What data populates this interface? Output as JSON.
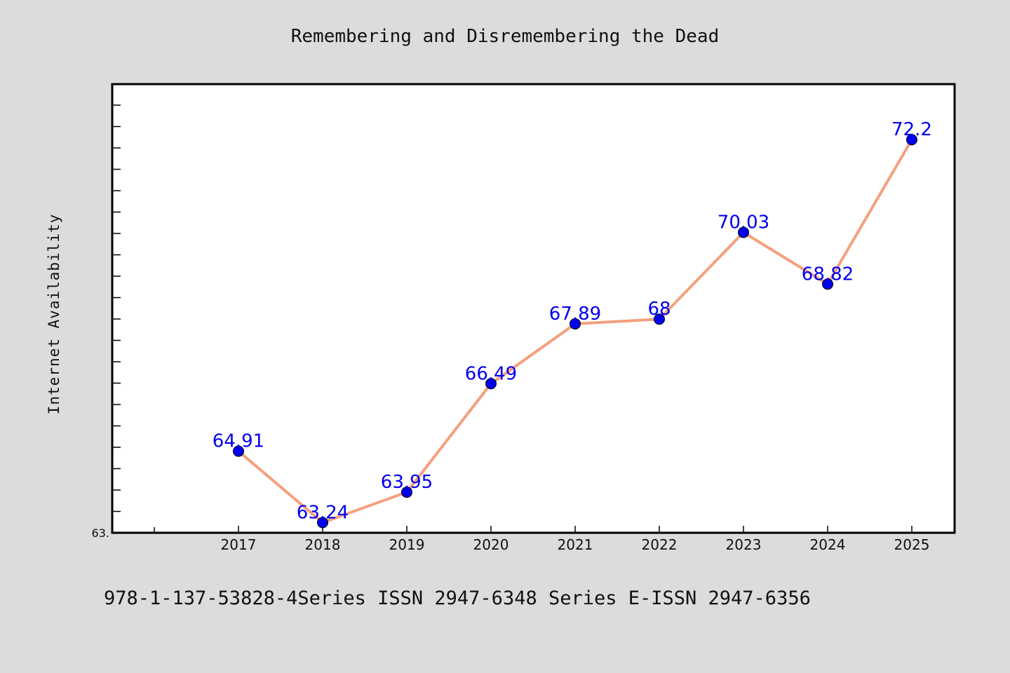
{
  "chart_data": {
    "type": "line",
    "title": "Remembering and Disremembering the Dead",
    "xlabel": "",
    "ylabel": "Internet Availability",
    "x": [
      "2017",
      "2018",
      "2019",
      "2020",
      "2021",
      "2022",
      "2023",
      "2024",
      "2025"
    ],
    "series": [
      {
        "values": [
          64.91,
          63.24,
          63.95,
          66.49,
          67.89,
          68,
          70.03,
          68.82,
          72.2
        ],
        "labels": [
          "64.91",
          "63.24",
          "63.95",
          "66.49",
          "67.89",
          "68",
          "70.03",
          "68.82",
          "72.2"
        ],
        "line_color": "#f4a07e",
        "marker_color": "#0000ee"
      }
    ],
    "ylim": [
      63.0,
      73.5
    ],
    "y_tick_labels": [
      "63."
    ],
    "grid": false,
    "legend": "none"
  },
  "footer": {
    "text": "978-1-137-53828-4Series ISSN 2947-6348 Series E-ISSN 2947-6356"
  }
}
